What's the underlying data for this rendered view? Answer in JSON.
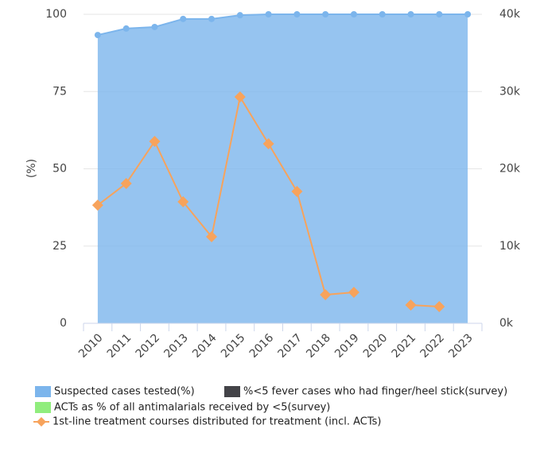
{
  "chart_data": {
    "type": "combo",
    "y_label": "(%)",
    "categories": [
      "2010",
      "2011",
      "2012",
      "2013",
      "2014",
      "2015",
      "2016",
      "2017",
      "2018",
      "2019",
      "2020",
      "2021",
      "2022",
      "2023"
    ],
    "ylim": [
      0,
      100
    ],
    "yticks": [
      0,
      25,
      50,
      75,
      100
    ],
    "y2lim": [
      0,
      40000
    ],
    "y2ticks": [
      {
        "value": 0,
        "label": "0k"
      },
      {
        "value": 10000,
        "label": "10k"
      },
      {
        "value": 20000,
        "label": "20k"
      },
      {
        "value": 30000,
        "label": "30k"
      },
      {
        "value": 40000,
        "label": "40k"
      }
    ],
    "grid": true,
    "series": [
      {
        "name": "Suspected cases tested(%)",
        "color": "#7cb5ec",
        "kind": "area",
        "values": [
          93.3,
          95.4,
          95.9,
          98.5,
          98.5,
          99.7,
          100,
          100,
          100,
          100,
          100,
          100,
          100,
          100
        ]
      },
      {
        "name": "%<5 fever cases who had finger/heel stick(survey)",
        "color": "#434348",
        "kind": "column",
        "values": [
          null,
          null,
          null,
          null,
          null,
          null,
          null,
          null,
          null,
          null,
          null,
          null,
          null,
          null
        ]
      },
      {
        "name": "ACTs as % of all antimalarials received by <5(survey)",
        "color": "#90ed7d",
        "kind": "column",
        "values": [
          null,
          null,
          null,
          null,
          null,
          null,
          null,
          null,
          null,
          null,
          null,
          null,
          null,
          null
        ]
      },
      {
        "name": "1st-line treatment courses distributed for treatment (incl. ACTs)",
        "color": "#f7a35c",
        "kind": "line",
        "axis": "y2",
        "values": [
          15300,
          18100,
          23550,
          15730,
          11210,
          29300,
          23240,
          17070,
          3700,
          4010,
          null,
          2370,
          2160,
          null
        ]
      }
    ]
  }
}
